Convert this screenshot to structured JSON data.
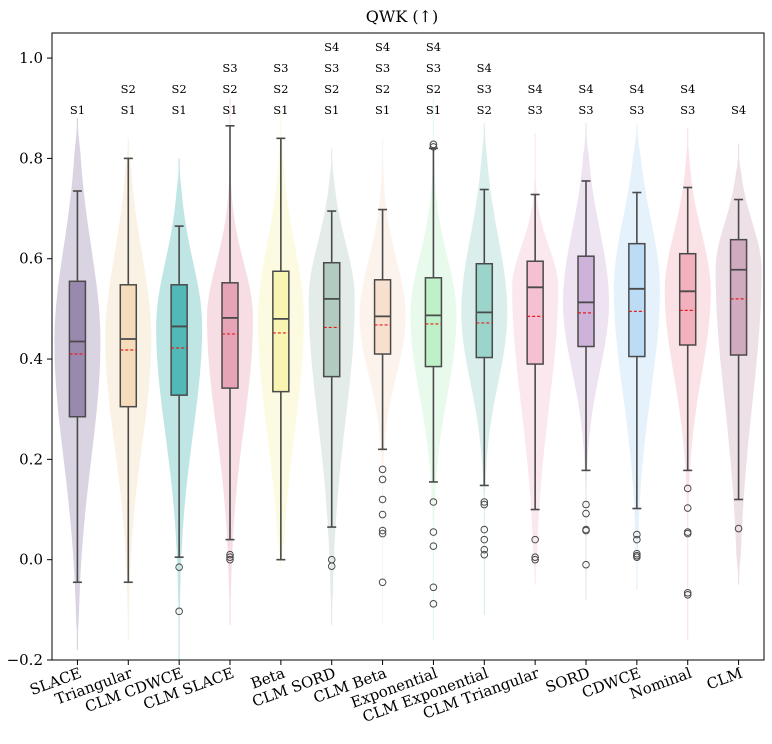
{
  "chart_data": {
    "type": "violin-box",
    "title": "QWK (↑)",
    "ylim": [
      -0.2,
      1.05
    ],
    "yticks": [
      -0.2,
      0.0,
      0.2,
      0.4,
      0.6,
      0.8,
      1.0
    ],
    "ytick_labels": [
      "−0.2",
      "0.0",
      "0.2",
      "0.4",
      "0.6",
      "0.8",
      "1.0"
    ],
    "grid": false,
    "series": [
      {
        "name": "SLACE",
        "color": "#8e7ba6",
        "violin": [
          -0.18,
          0.88
        ],
        "whislo": -0.045,
        "q1": 0.285,
        "median": 0.435,
        "mean": 0.41,
        "q3": 0.555,
        "whishi": 0.735,
        "fliers": [],
        "sig": [
          "S1"
        ]
      },
      {
        "name": "Triangular",
        "color": "#f3d9b4",
        "violin": [
          -0.16,
          0.84
        ],
        "whislo": -0.045,
        "q1": 0.305,
        "median": 0.44,
        "mean": 0.418,
        "q3": 0.548,
        "whishi": 0.8,
        "fliers": [],
        "sig": [
          "S2",
          "S1"
        ]
      },
      {
        "name": "CLM CDWCE",
        "color": "#3fb0b0",
        "violin": [
          -0.2,
          0.8
        ],
        "whislo": 0.005,
        "q1": 0.328,
        "median": 0.465,
        "mean": 0.422,
        "q3": 0.548,
        "whishi": 0.665,
        "fliers": [
          -0.015,
          -0.103
        ],
        "sig": [
          "S2",
          "S1"
        ]
      },
      {
        "name": "CLM SLACE",
        "color": "#e39aae",
        "violin": [
          -0.13,
          0.92
        ],
        "whislo": 0.04,
        "q1": 0.342,
        "median": 0.482,
        "mean": 0.45,
        "q3": 0.552,
        "whishi": 0.865,
        "fliers": [
          0.01,
          0.005,
          0.0
        ],
        "sig": [
          "S3",
          "S2",
          "S1"
        ]
      },
      {
        "name": "Beta",
        "color": "#f6f3a8",
        "violin": [
          -0.02,
          0.9
        ],
        "whislo": 0.0,
        "q1": 0.335,
        "median": 0.48,
        "mean": 0.452,
        "q3": 0.575,
        "whishi": 0.84,
        "fliers": [],
        "sig": [
          "S3",
          "S2",
          "S1"
        ]
      },
      {
        "name": "CLM SORD",
        "color": "#a9c6b9",
        "violin": [
          -0.13,
          0.82
        ],
        "whislo": 0.065,
        "q1": 0.365,
        "median": 0.52,
        "mean": 0.463,
        "q3": 0.592,
        "whishi": 0.695,
        "fliers": [
          0.0,
          -0.013
        ],
        "sig": [
          "S4",
          "S3",
          "S2",
          "S1"
        ]
      },
      {
        "name": "CLM Beta",
        "color": "#f6dcc8",
        "violin": [
          -0.13,
          0.84
        ],
        "whislo": 0.22,
        "q1": 0.41,
        "median": 0.485,
        "mean": 0.468,
        "q3": 0.558,
        "whishi": 0.698,
        "fliers": [
          0.18,
          0.16,
          0.12,
          0.09,
          0.058,
          0.052,
          -0.045
        ],
        "sig": [
          "S4",
          "S3",
          "S2",
          "S1"
        ]
      },
      {
        "name": "Exponential",
        "color": "#b6efc2",
        "violin": [
          -0.16,
          0.92
        ],
        "whislo": 0.155,
        "q1": 0.385,
        "median": 0.487,
        "mean": 0.47,
        "q3": 0.562,
        "whishi": 0.82,
        "fliers": [
          0.828,
          0.823,
          0.115,
          0.055,
          0.027,
          -0.055,
          -0.088
        ],
        "sig": [
          "S4",
          "S3",
          "S2",
          "S1"
        ]
      },
      {
        "name": "CLM Exponential",
        "color": "#8fcfc4",
        "violin": [
          -0.11,
          0.87
        ],
        "whislo": 0.148,
        "q1": 0.403,
        "median": 0.493,
        "mean": 0.472,
        "q3": 0.59,
        "whishi": 0.738,
        "fliers": [
          0.115,
          0.11,
          0.06,
          0.04,
          0.02,
          0.01
        ],
        "sig": [
          "S4",
          "S3",
          "S2"
        ]
      },
      {
        "name": "CLM Triangular",
        "color": "#f2b8cc",
        "violin": [
          -0.05,
          0.85
        ],
        "whislo": 0.1,
        "q1": 0.39,
        "median": 0.543,
        "mean": 0.485,
        "q3": 0.595,
        "whishi": 0.728,
        "fliers": [
          0.04,
          0.005,
          0.0
        ],
        "sig": [
          "S4",
          "S3"
        ]
      },
      {
        "name": "SORD",
        "color": "#c7a9d6",
        "violin": [
          -0.08,
          0.87
        ],
        "whislo": 0.178,
        "q1": 0.425,
        "median": 0.513,
        "mean": 0.492,
        "q3": 0.605,
        "whishi": 0.755,
        "fliers": [
          0.11,
          0.092,
          0.06,
          0.058,
          -0.01
        ],
        "sig": [
          "S4",
          "S3"
        ]
      },
      {
        "name": "CDWCE",
        "color": "#b4d7f2",
        "violin": [
          -0.06,
          0.87
        ],
        "whislo": 0.102,
        "q1": 0.405,
        "median": 0.54,
        "mean": 0.495,
        "q3": 0.63,
        "whishi": 0.732,
        "fliers": [
          0.05,
          0.04,
          0.012,
          0.008,
          0.005
        ],
        "sig": [
          "S4",
          "S3"
        ]
      },
      {
        "name": "Nominal",
        "color": "#f0a8b4",
        "violin": [
          -0.16,
          0.86
        ],
        "whislo": 0.178,
        "q1": 0.428,
        "median": 0.535,
        "mean": 0.497,
        "q3": 0.61,
        "whishi": 0.742,
        "fliers": [
          0.142,
          0.103,
          0.055,
          0.052,
          -0.066,
          -0.07
        ],
        "sig": [
          "S4",
          "S3"
        ]
      },
      {
        "name": "CLM",
        "color": "#caa0b6",
        "violin": [
          -0.05,
          0.83
        ],
        "whislo": 0.12,
        "q1": 0.408,
        "median": 0.578,
        "mean": 0.52,
        "q3": 0.638,
        "whishi": 0.718,
        "fliers": [
          0.062
        ],
        "sig": [
          "S4"
        ]
      }
    ]
  }
}
